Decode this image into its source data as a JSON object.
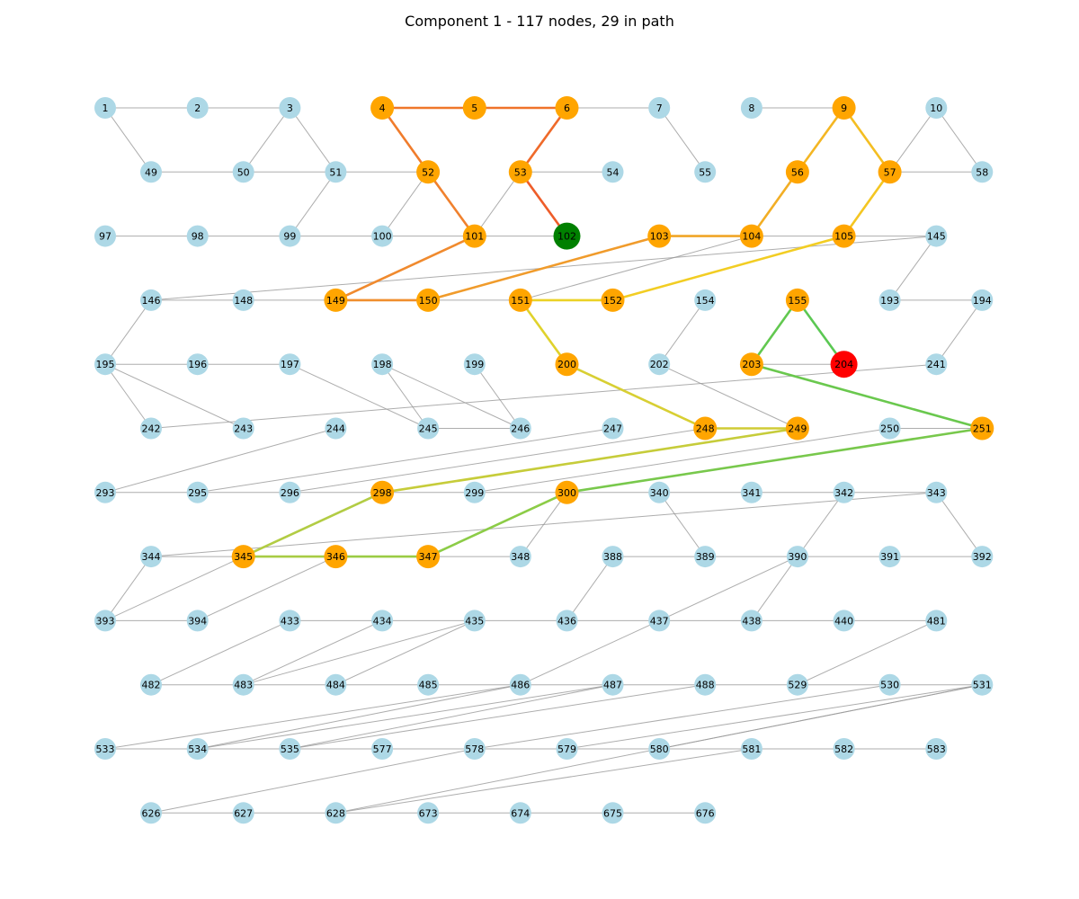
{
  "title": "Component 1 - 117 nodes, 29 in path",
  "colors": {
    "node_default": "#add8e6",
    "node_path": "#ffa500",
    "node_start": "#008000",
    "node_end": "#ff0000",
    "edge_default": "#999999"
  },
  "nodes": [
    {
      "id": 1,
      "row": 0,
      "col": 0
    },
    {
      "id": 2,
      "row": 0,
      "col": 1
    },
    {
      "id": 3,
      "row": 0,
      "col": 2
    },
    {
      "id": 4,
      "row": 0,
      "col": 3,
      "role": "path"
    },
    {
      "id": 5,
      "row": 0,
      "col": 4,
      "role": "path"
    },
    {
      "id": 6,
      "row": 0,
      "col": 5,
      "role": "path"
    },
    {
      "id": 7,
      "row": 0,
      "col": 6
    },
    {
      "id": 8,
      "row": 0,
      "col": 7
    },
    {
      "id": 9,
      "row": 0,
      "col": 8,
      "role": "path"
    },
    {
      "id": 10,
      "row": 0,
      "col": 9
    },
    {
      "id": 49,
      "row": 1,
      "col": 0
    },
    {
      "id": 50,
      "row": 1,
      "col": 1
    },
    {
      "id": 51,
      "row": 1,
      "col": 2
    },
    {
      "id": 52,
      "row": 1,
      "col": 3,
      "role": "path"
    },
    {
      "id": 53,
      "row": 1,
      "col": 4,
      "role": "path"
    },
    {
      "id": 54,
      "row": 1,
      "col": 5
    },
    {
      "id": 55,
      "row": 1,
      "col": 6
    },
    {
      "id": 56,
      "row": 1,
      "col": 7,
      "role": "path"
    },
    {
      "id": 57,
      "row": 1,
      "col": 8,
      "role": "path"
    },
    {
      "id": 58,
      "row": 1,
      "col": 9
    },
    {
      "id": 97,
      "row": 2,
      "col": 0
    },
    {
      "id": 98,
      "row": 2,
      "col": 1
    },
    {
      "id": 99,
      "row": 2,
      "col": 2
    },
    {
      "id": 100,
      "row": 2,
      "col": 3
    },
    {
      "id": 101,
      "row": 2,
      "col": 4,
      "role": "path"
    },
    {
      "id": 102,
      "row": 2,
      "col": 5,
      "role": "start"
    },
    {
      "id": 103,
      "row": 2,
      "col": 6,
      "role": "path"
    },
    {
      "id": 104,
      "row": 2,
      "col": 7,
      "role": "path"
    },
    {
      "id": 105,
      "row": 2,
      "col": 8,
      "role": "path"
    },
    {
      "id": 145,
      "row": 2,
      "col": 9
    },
    {
      "id": 146,
      "row": 3,
      "col": 0
    },
    {
      "id": 148,
      "row": 3,
      "col": 1
    },
    {
      "id": 149,
      "row": 3,
      "col": 2,
      "role": "path"
    },
    {
      "id": 150,
      "row": 3,
      "col": 3,
      "role": "path"
    },
    {
      "id": 151,
      "row": 3,
      "col": 4,
      "role": "path"
    },
    {
      "id": 152,
      "row": 3,
      "col": 5,
      "role": "path"
    },
    {
      "id": 154,
      "row": 3,
      "col": 6
    },
    {
      "id": 155,
      "row": 3,
      "col": 7,
      "role": "path"
    },
    {
      "id": 193,
      "row": 3,
      "col": 8
    },
    {
      "id": 194,
      "row": 3,
      "col": 9
    },
    {
      "id": 195,
      "row": 4,
      "col": 0
    },
    {
      "id": 196,
      "row": 4,
      "col": 1
    },
    {
      "id": 197,
      "row": 4,
      "col": 2
    },
    {
      "id": 198,
      "row": 4,
      "col": 3
    },
    {
      "id": 199,
      "row": 4,
      "col": 4
    },
    {
      "id": 200,
      "row": 4,
      "col": 5,
      "role": "path"
    },
    {
      "id": 202,
      "row": 4,
      "col": 6
    },
    {
      "id": 203,
      "row": 4,
      "col": 7,
      "role": "path"
    },
    {
      "id": 204,
      "row": 4,
      "col": 8,
      "role": "end"
    },
    {
      "id": 241,
      "row": 4,
      "col": 9
    },
    {
      "id": 242,
      "row": 5,
      "col": 0
    },
    {
      "id": 243,
      "row": 5,
      "col": 1
    },
    {
      "id": 244,
      "row": 5,
      "col": 2
    },
    {
      "id": 245,
      "row": 5,
      "col": 3
    },
    {
      "id": 246,
      "row": 5,
      "col": 4
    },
    {
      "id": 247,
      "row": 5,
      "col": 5
    },
    {
      "id": 248,
      "row": 5,
      "col": 6,
      "role": "path"
    },
    {
      "id": 249,
      "row": 5,
      "col": 7,
      "role": "path"
    },
    {
      "id": 250,
      "row": 5,
      "col": 8
    },
    {
      "id": 251,
      "row": 5,
      "col": 9,
      "role": "path"
    },
    {
      "id": 293,
      "row": 6,
      "col": 0
    },
    {
      "id": 295,
      "row": 6,
      "col": 1
    },
    {
      "id": 296,
      "row": 6,
      "col": 2
    },
    {
      "id": 298,
      "row": 6,
      "col": 3,
      "role": "path"
    },
    {
      "id": 299,
      "row": 6,
      "col": 4
    },
    {
      "id": 300,
      "row": 6,
      "col": 5,
      "role": "path"
    },
    {
      "id": 340,
      "row": 6,
      "col": 6
    },
    {
      "id": 341,
      "row": 6,
      "col": 7
    },
    {
      "id": 342,
      "row": 6,
      "col": 8
    },
    {
      "id": 343,
      "row": 6,
      "col": 9
    },
    {
      "id": 344,
      "row": 7,
      "col": 0
    },
    {
      "id": 345,
      "row": 7,
      "col": 1,
      "role": "path"
    },
    {
      "id": 346,
      "row": 7,
      "col": 2,
      "role": "path"
    },
    {
      "id": 347,
      "row": 7,
      "col": 3,
      "role": "path"
    },
    {
      "id": 348,
      "row": 7,
      "col": 4
    },
    {
      "id": 388,
      "row": 7,
      "col": 5
    },
    {
      "id": 389,
      "row": 7,
      "col": 6
    },
    {
      "id": 390,
      "row": 7,
      "col": 7
    },
    {
      "id": 391,
      "row": 7,
      "col": 8
    },
    {
      "id": 392,
      "row": 7,
      "col": 9
    },
    {
      "id": 393,
      "row": 8,
      "col": 0
    },
    {
      "id": 394,
      "row": 8,
      "col": 1
    },
    {
      "id": 433,
      "row": 8,
      "col": 2
    },
    {
      "id": 434,
      "row": 8,
      "col": 3
    },
    {
      "id": 435,
      "row": 8,
      "col": 4
    },
    {
      "id": 436,
      "row": 8,
      "col": 5
    },
    {
      "id": 437,
      "row": 8,
      "col": 6
    },
    {
      "id": 438,
      "row": 8,
      "col": 7
    },
    {
      "id": 440,
      "row": 8,
      "col": 8
    },
    {
      "id": 481,
      "row": 8,
      "col": 9
    },
    {
      "id": 482,
      "row": 9,
      "col": 0
    },
    {
      "id": 483,
      "row": 9,
      "col": 1
    },
    {
      "id": 484,
      "row": 9,
      "col": 2
    },
    {
      "id": 485,
      "row": 9,
      "col": 3
    },
    {
      "id": 486,
      "row": 9,
      "col": 4
    },
    {
      "id": 487,
      "row": 9,
      "col": 5
    },
    {
      "id": 488,
      "row": 9,
      "col": 6
    },
    {
      "id": 529,
      "row": 9,
      "col": 7
    },
    {
      "id": 530,
      "row": 9,
      "col": 8
    },
    {
      "id": 531,
      "row": 9,
      "col": 9
    },
    {
      "id": 533,
      "row": 10,
      "col": 0
    },
    {
      "id": 534,
      "row": 10,
      "col": 1
    },
    {
      "id": 535,
      "row": 10,
      "col": 2
    },
    {
      "id": 577,
      "row": 10,
      "col": 3
    },
    {
      "id": 578,
      "row": 10,
      "col": 4
    },
    {
      "id": 579,
      "row": 10,
      "col": 5
    },
    {
      "id": 580,
      "row": 10,
      "col": 6
    },
    {
      "id": 581,
      "row": 10,
      "col": 7
    },
    {
      "id": 582,
      "row": 10,
      "col": 8
    },
    {
      "id": 583,
      "row": 10,
      "col": 9
    },
    {
      "id": 626,
      "row": 11,
      "col": 0
    },
    {
      "id": 627,
      "row": 11,
      "col": 1
    },
    {
      "id": 628,
      "row": 11,
      "col": 2
    },
    {
      "id": 673,
      "row": 11,
      "col": 3
    },
    {
      "id": 674,
      "row": 11,
      "col": 4
    },
    {
      "id": 675,
      "row": 11,
      "col": 5
    },
    {
      "id": 676,
      "row": 11,
      "col": 6
    }
  ],
  "edges": [
    [
      1,
      2
    ],
    [
      2,
      3
    ],
    [
      1,
      49
    ],
    [
      3,
      50
    ],
    [
      49,
      50
    ],
    [
      50,
      51
    ],
    [
      3,
      51
    ],
    [
      51,
      52
    ],
    [
      52,
      100
    ],
    [
      51,
      99
    ],
    [
      6,
      7
    ],
    [
      7,
      55
    ],
    [
      8,
      9
    ],
    [
      10,
      57
    ],
    [
      10,
      58
    ],
    [
      57,
      58
    ],
    [
      53,
      54
    ],
    [
      53,
      101
    ],
    [
      97,
      98
    ],
    [
      98,
      99
    ],
    [
      99,
      100
    ],
    [
      100,
      101
    ],
    [
      101,
      102
    ],
    [
      104,
      105
    ],
    [
      105,
      145
    ],
    [
      104,
      151
    ],
    [
      145,
      146
    ],
    [
      145,
      193
    ],
    [
      193,
      194
    ],
    [
      194,
      241
    ],
    [
      146,
      195
    ],
    [
      146,
      148
    ],
    [
      148,
      149
    ],
    [
      150,
      151
    ],
    [
      195,
      196
    ],
    [
      196,
      197
    ],
    [
      195,
      242
    ],
    [
      195,
      243
    ],
    [
      197,
      245
    ],
    [
      198,
      245
    ],
    [
      198,
      246
    ],
    [
      199,
      246
    ],
    [
      245,
      246
    ],
    [
      154,
      202
    ],
    [
      202,
      249
    ],
    [
      203,
      204
    ],
    [
      241,
      242
    ],
    [
      244,
      293
    ],
    [
      293,
      295
    ],
    [
      295,
      296
    ],
    [
      296,
      298
    ],
    [
      247,
      295
    ],
    [
      248,
      296
    ],
    [
      250,
      251
    ],
    [
      250,
      299
    ],
    [
      298,
      299
    ],
    [
      299,
      300
    ],
    [
      300,
      340
    ],
    [
      340,
      341
    ],
    [
      341,
      342
    ],
    [
      342,
      343
    ],
    [
      344,
      343
    ],
    [
      300,
      348
    ],
    [
      340,
      389
    ],
    [
      343,
      392
    ],
    [
      342,
      390
    ],
    [
      344,
      345
    ],
    [
      344,
      393
    ],
    [
      345,
      393
    ],
    [
      346,
      394
    ],
    [
      347,
      348
    ],
    [
      388,
      389
    ],
    [
      389,
      390
    ],
    [
      390,
      391
    ],
    [
      391,
      392
    ],
    [
      388,
      436
    ],
    [
      390,
      437
    ],
    [
      390,
      438
    ],
    [
      393,
      394
    ],
    [
      433,
      434
    ],
    [
      434,
      435
    ],
    [
      435,
      436
    ],
    [
      436,
      437
    ],
    [
      437,
      438
    ],
    [
      438,
      440
    ],
    [
      440,
      481
    ],
    [
      433,
      482
    ],
    [
      434,
      483
    ],
    [
      435,
      483
    ],
    [
      435,
      484
    ],
    [
      481,
      529
    ],
    [
      482,
      483
    ],
    [
      483,
      484
    ],
    [
      484,
      485
    ],
    [
      485,
      486
    ],
    [
      486,
      487
    ],
    [
      487,
      488
    ],
    [
      488,
      529
    ],
    [
      529,
      530
    ],
    [
      530,
      531
    ],
    [
      437,
      486
    ],
    [
      486,
      533
    ],
    [
      486,
      534
    ],
    [
      487,
      534
    ],
    [
      487,
      535
    ],
    [
      488,
      535
    ],
    [
      530,
      578
    ],
    [
      531,
      579
    ],
    [
      531,
      580
    ],
    [
      531,
      628
    ],
    [
      533,
      534
    ],
    [
      534,
      535
    ],
    [
      535,
      577
    ],
    [
      577,
      578
    ],
    [
      578,
      579
    ],
    [
      579,
      580
    ],
    [
      580,
      581
    ],
    [
      581,
      582
    ],
    [
      582,
      583
    ],
    [
      578,
      626
    ],
    [
      581,
      628
    ],
    [
      626,
      627
    ],
    [
      627,
      628
    ],
    [
      628,
      673
    ],
    [
      673,
      674
    ],
    [
      674,
      675
    ],
    [
      675,
      676
    ]
  ],
  "path_edges": [
    {
      "from": 102,
      "to": 53,
      "color": "#ee5d2a"
    },
    {
      "from": 53,
      "to": 6,
      "color": "#ef6a2a"
    },
    {
      "from": 6,
      "to": 5,
      "color": "#ef732a"
    },
    {
      "from": 5,
      "to": 4,
      "color": "#ef772a"
    },
    {
      "from": 4,
      "to": 52,
      "color": "#f07c2c"
    },
    {
      "from": 52,
      "to": 101,
      "color": "#f0812e"
    },
    {
      "from": 101,
      "to": 149,
      "color": "#f08a2e"
    },
    {
      "from": 149,
      "to": 150,
      "color": "#f08f2e"
    },
    {
      "from": 150,
      "to": 103,
      "color": "#f09b2b"
    },
    {
      "from": 103,
      "to": 104,
      "color": "#f0a527"
    },
    {
      "from": 104,
      "to": 56,
      "color": "#f2ae25"
    },
    {
      "from": 56,
      "to": 9,
      "color": "#f4b623"
    },
    {
      "from": 9,
      "to": 57,
      "color": "#f4be22"
    },
    {
      "from": 57,
      "to": 105,
      "color": "#f4c622"
    },
    {
      "from": 105,
      "to": 152,
      "color": "#f2cd23"
    },
    {
      "from": 152,
      "to": 151,
      "color": "#ebd227"
    },
    {
      "from": 151,
      "to": 200,
      "color": "#e0d22c"
    },
    {
      "from": 200,
      "to": 248,
      "color": "#d8cf33"
    },
    {
      "from": 248,
      "to": 249,
      "color": "#d0cc35"
    },
    {
      "from": 249,
      "to": 298,
      "color": "#c6cc3a"
    },
    {
      "from": 298,
      "to": 345,
      "color": "#b2cc44"
    },
    {
      "from": 345,
      "to": 346,
      "color": "#a8cc44"
    },
    {
      "from": 346,
      "to": 347,
      "color": "#9acc44"
    },
    {
      "from": 347,
      "to": 300,
      "color": "#8ccc47"
    },
    {
      "from": 300,
      "to": 251,
      "color": "#78c84c"
    },
    {
      "from": 251,
      "to": 203,
      "color": "#6ac84e"
    },
    {
      "from": 203,
      "to": 155,
      "color": "#62c850"
    },
    {
      "from": 155,
      "to": 204,
      "color": "#5bc853"
    }
  ]
}
